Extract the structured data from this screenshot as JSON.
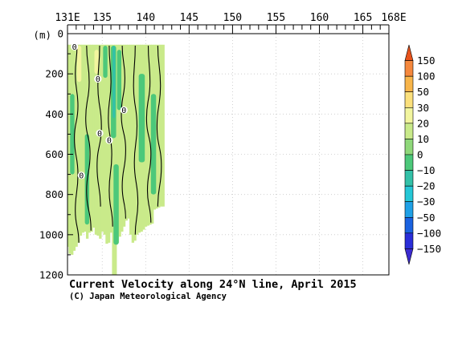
{
  "chart_data": {
    "type": "heatmap",
    "title": "Current Velocity along 24°N line, April 2015",
    "credit": "(C) Japan Meteorological Agency",
    "x_axis": {
      "range": [
        131,
        168
      ],
      "tick_values": [
        131,
        135,
        140,
        145,
        150,
        155,
        160,
        165,
        168
      ],
      "tick_labels": [
        "131E",
        "135",
        "140",
        "145",
        "150",
        "155",
        "160",
        "165",
        "168E"
      ]
    },
    "y_axis": {
      "label": "(m)",
      "range": [
        0,
        1200
      ],
      "reversed": true,
      "tick_values": [
        0,
        200,
        400,
        600,
        800,
        1000,
        1200
      ],
      "tick_labels": [
        "0",
        "200",
        "400",
        "600",
        "800",
        "1000",
        "1200"
      ]
    },
    "grid": true,
    "data_extent_lon": [
      131,
      142.2
    ],
    "colorbar": {
      "placement": "right",
      "levels": [
        150,
        100,
        50,
        30,
        20,
        10,
        0,
        -10,
        -20,
        -30,
        -50,
        -100,
        -150
      ],
      "labels": [
        "150",
        "100",
        "50",
        "30",
        "20",
        "10",
        "0",
        "−10",
        "−20",
        "−30",
        "−50",
        "−100",
        "−150"
      ],
      "colors": [
        "#e8531c",
        "#f5883d",
        "#f8b54a",
        "#fbe07c",
        "#f2f59e",
        "#c9ea8a",
        "#8fd87a",
        "#4cc87a",
        "#33c1a8",
        "#25c7d6",
        "#1fa0e6",
        "#1a62e0",
        "#2a2ed8",
        "#3b2bd0"
      ]
    },
    "profiles": [
      {
        "lon": 131.0,
        "bottom": 1060
      },
      {
        "lon": 131.25,
        "bottom": 1095
      },
      {
        "lon": 131.5,
        "bottom": 1100
      },
      {
        "lon": 131.75,
        "bottom": 1080
      },
      {
        "lon": 132.0,
        "bottom": 1060
      },
      {
        "lon": 132.25,
        "bottom": 1040
      },
      {
        "lon": 132.5,
        "bottom": 1005
      },
      {
        "lon": 132.75,
        "bottom": 990
      },
      {
        "lon": 133.0,
        "bottom": 985
      },
      {
        "lon": 133.25,
        "bottom": 1020
      },
      {
        "lon": 133.5,
        "bottom": 990
      },
      {
        "lon": 133.75,
        "bottom": 985
      },
      {
        "lon": 134.0,
        "bottom": 965
      },
      {
        "lon": 134.25,
        "bottom": 1000
      },
      {
        "lon": 134.5,
        "bottom": 1005
      },
      {
        "lon": 134.75,
        "bottom": 1020
      },
      {
        "lon": 135.0,
        "bottom": 985
      },
      {
        "lon": 135.25,
        "bottom": 1000
      },
      {
        "lon": 135.5,
        "bottom": 1045
      },
      {
        "lon": 135.75,
        "bottom": 1040
      },
      {
        "lon": 136.0,
        "bottom": 990
      },
      {
        "lon": 136.25,
        "bottom": 1200
      },
      {
        "lon": 136.5,
        "bottom": 1200
      },
      {
        "lon": 136.75,
        "bottom": 1040
      },
      {
        "lon": 137.0,
        "bottom": 1010
      },
      {
        "lon": 137.25,
        "bottom": 985
      },
      {
        "lon": 137.5,
        "bottom": 960
      },
      {
        "lon": 137.75,
        "bottom": 930
      },
      {
        "lon": 138.0,
        "bottom": 920
      },
      {
        "lon": 138.25,
        "bottom": 1000
      },
      {
        "lon": 138.5,
        "bottom": 1040
      },
      {
        "lon": 138.75,
        "bottom": 1030
      },
      {
        "lon": 139.0,
        "bottom": 1000
      },
      {
        "lon": 139.25,
        "bottom": 990
      },
      {
        "lon": 139.5,
        "bottom": 985
      },
      {
        "lon": 139.75,
        "bottom": 975
      },
      {
        "lon": 140.0,
        "bottom": 960
      },
      {
        "lon": 140.25,
        "bottom": 955
      },
      {
        "lon": 140.5,
        "bottom": 950
      },
      {
        "lon": 140.75,
        "bottom": 945
      },
      {
        "lon": 141.0,
        "bottom": 875
      },
      {
        "lon": 141.25,
        "bottom": 870
      },
      {
        "lon": 141.5,
        "bottom": 865
      },
      {
        "lon": 141.75,
        "bottom": 860
      },
      {
        "lon": 142.0,
        "bottom": 860
      }
    ],
    "bands": [
      {
        "lon": [
          132.1,
          132.6
        ],
        "depth": [
          60,
          240
        ],
        "color": "#f2f59e"
      },
      {
        "lon": [
          133.6,
          134.0
        ],
        "depth": [
          60,
          300
        ],
        "color": "#c9ea8a"
      },
      {
        "lon": [
          134.1,
          134.6
        ],
        "depth": [
          80,
          200
        ],
        "color": "#f2f59e"
      },
      {
        "lon": [
          135.1,
          135.6
        ],
        "depth": [
          60,
          220
        ],
        "color": "#4cc87a"
      },
      {
        "lon": [
          136.0,
          136.6
        ],
        "depth": [
          60,
          520
        ],
        "color": "#4cc87a"
      },
      {
        "lon": [
          136.2,
          136.5
        ],
        "depth": [
          60,
          420
        ],
        "color": "#33c1a8"
      },
      {
        "lon": [
          136.7,
          137.2
        ],
        "depth": [
          80,
          380
        ],
        "color": "#4cc87a"
      },
      {
        "lon": [
          139.8,
          140.4
        ],
        "depth": [
          60,
          360
        ],
        "color": "#c9ea8a"
      },
      {
        "lon": [
          131.3,
          131.8
        ],
        "depth": [
          300,
          700
        ],
        "color": "#4cc87a"
      },
      {
        "lon": [
          133.0,
          133.5
        ],
        "depth": [
          500,
          950
        ],
        "color": "#4cc87a"
      },
      {
        "lon": [
          134.2,
          134.7
        ],
        "depth": [
          400,
          820
        ],
        "color": "#c9ea8a"
      },
      {
        "lon": [
          136.3,
          136.9
        ],
        "depth": [
          650,
          1050
        ],
        "color": "#4cc87a"
      },
      {
        "lon": [
          137.6,
          138.2
        ],
        "depth": [
          450,
          880
        ],
        "color": "#c9ea8a"
      },
      {
        "lon": [
          139.2,
          139.9
        ],
        "depth": [
          200,
          640
        ],
        "color": "#4cc87a"
      },
      {
        "lon": [
          140.6,
          141.2
        ],
        "depth": [
          300,
          800
        ],
        "color": "#4cc87a"
      },
      {
        "lon": [
          141.5,
          142.0
        ],
        "depth": [
          150,
          600
        ],
        "color": "#c9ea8a"
      }
    ],
    "contour_lines": [
      [
        [
          132.1,
          60
        ],
        [
          131.9,
          200
        ],
        [
          132.2,
          360
        ],
        [
          131.8,
          520
        ],
        [
          132.2,
          700
        ],
        [
          131.9,
          880
        ],
        [
          132.3,
          1040
        ]
      ],
      [
        [
          133.2,
          60
        ],
        [
          133.5,
          240
        ],
        [
          133.1,
          420
        ],
        [
          133.6,
          600
        ],
        [
          133.2,
          780
        ],
        [
          133.7,
          980
        ]
      ],
      [
        [
          134.7,
          60
        ],
        [
          134.5,
          260
        ],
        [
          134.9,
          460
        ],
        [
          134.4,
          660
        ],
        [
          134.8,
          860
        ]
      ],
      [
        [
          135.8,
          60
        ],
        [
          136.0,
          240
        ],
        [
          135.7,
          420
        ],
        [
          136.1,
          600
        ],
        [
          135.8,
          780
        ],
        [
          136.2,
          960
        ]
      ],
      [
        [
          137.3,
          60
        ],
        [
          137.6,
          220
        ],
        [
          137.2,
          400
        ],
        [
          137.7,
          580
        ],
        [
          137.3,
          760
        ],
        [
          137.7,
          920
        ]
      ],
      [
        [
          138.8,
          60
        ],
        [
          138.6,
          260
        ],
        [
          139.0,
          460
        ],
        [
          138.7,
          640
        ],
        [
          139.1,
          840
        ],
        [
          138.8,
          1000
        ]
      ],
      [
        [
          140.3,
          60
        ],
        [
          140.5,
          240
        ],
        [
          140.1,
          420
        ],
        [
          140.6,
          600
        ],
        [
          140.2,
          780
        ],
        [
          140.6,
          940
        ]
      ],
      [
        [
          141.4,
          60
        ],
        [
          141.7,
          260
        ],
        [
          141.3,
          460
        ],
        [
          141.8,
          660
        ],
        [
          141.4,
          860
        ]
      ]
    ],
    "zero_labels": [
      {
        "lon": 131.8,
        "depth": 65,
        "text": "0"
      },
      {
        "lon": 134.5,
        "depth": 225,
        "text": "0"
      },
      {
        "lon": 137.5,
        "depth": 380,
        "text": "0"
      },
      {
        "lon": 134.7,
        "depth": 495,
        "text": "0"
      },
      {
        "lon": 135.8,
        "depth": 530,
        "text": "0"
      },
      {
        "lon": 132.6,
        "depth": 705,
        "text": "0"
      }
    ]
  }
}
